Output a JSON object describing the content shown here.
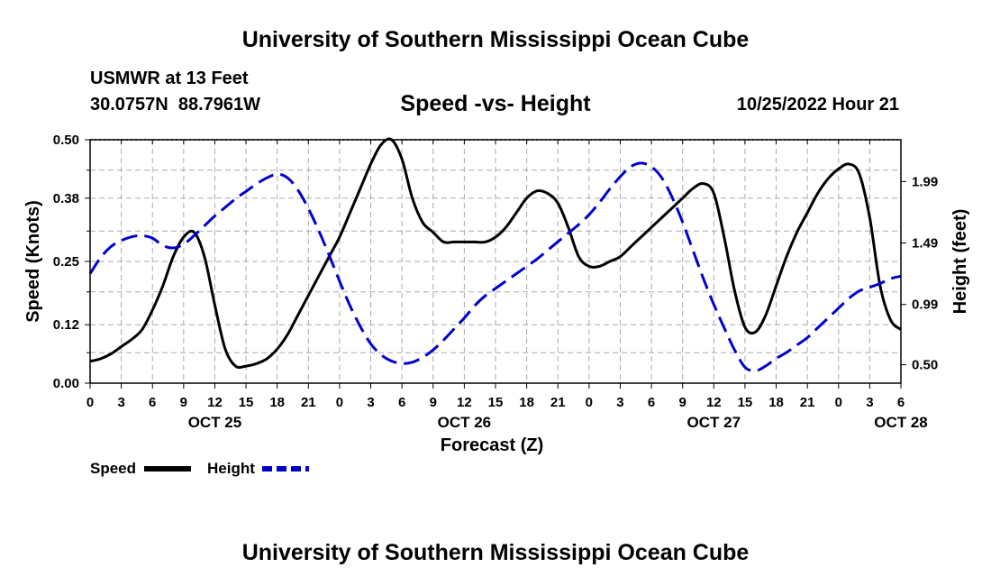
{
  "header": {
    "title": "University of Southern Mississippi Ocean Cube",
    "station": "USMWR at 13 Feet",
    "coords": "30.0757N  88.7961W",
    "subtitle": "Speed -vs- Height",
    "datetime": "10/25/2022 Hour 21"
  },
  "footer": {
    "title": "University of Southern Mississippi Ocean Cube"
  },
  "colors": {
    "speed": "#000000",
    "height": "#0000cc",
    "grid": "#aaaaaa"
  },
  "chart_data": {
    "type": "line",
    "title": "Speed -vs- Height",
    "xlabel": "Forecast (Z)",
    "ylabel": "Speed (Knots)",
    "y2label": "Height (feet)",
    "x_ticks": [
      "0",
      "3",
      "6",
      "9",
      "12",
      "15",
      "18",
      "21",
      "0",
      "3",
      "6",
      "9",
      "12",
      "15",
      "18",
      "21",
      "0",
      "3",
      "6",
      "9",
      "12",
      "15",
      "18",
      "21",
      "0",
      "3",
      "6"
    ],
    "day_labels": [
      {
        "label": "OCT 25",
        "hour": 12
      },
      {
        "label": "OCT 26",
        "hour": 36
      },
      {
        "label": "OCT 27",
        "hour": 60
      },
      {
        "label": "OCT 28",
        "hour": 78
      }
    ],
    "xlim": [
      0,
      78
    ],
    "ylim": [
      0,
      0.5
    ],
    "y_ticks": [
      "0.00",
      "0.12",
      "0.25",
      "0.38",
      "0.50"
    ],
    "y2lim": [
      0.35,
      2.33
    ],
    "y2_ticks": [
      "0.50",
      "0.99",
      "1.49",
      "1.99"
    ],
    "grid": true,
    "legend_position": "bottom-left",
    "series": [
      {
        "name": "Speed",
        "axis": "left",
        "style": "solid",
        "x": [
          0,
          1,
          2,
          3,
          4,
          5,
          6,
          7,
          8,
          9,
          10,
          11,
          12,
          13,
          14,
          15,
          16,
          17,
          18,
          19,
          20,
          21,
          22,
          23,
          24,
          25,
          26,
          27,
          28,
          29,
          30,
          31,
          32,
          33,
          34,
          35,
          36,
          37,
          38,
          39,
          40,
          41,
          42,
          43,
          44,
          45,
          46,
          47,
          48,
          49,
          50,
          51,
          52,
          53,
          54,
          55,
          56,
          57,
          58,
          59,
          60,
          61,
          62,
          63,
          64,
          65,
          66,
          67,
          68,
          69,
          70,
          71,
          72,
          73,
          74,
          75,
          76,
          77,
          78
        ],
        "values": [
          0.045,
          0.05,
          0.06,
          0.075,
          0.09,
          0.11,
          0.15,
          0.2,
          0.26,
          0.3,
          0.31,
          0.26,
          0.16,
          0.07,
          0.035,
          0.035,
          0.04,
          0.05,
          0.07,
          0.1,
          0.14,
          0.18,
          0.22,
          0.26,
          0.3,
          0.35,
          0.4,
          0.45,
          0.49,
          0.5,
          0.46,
          0.38,
          0.33,
          0.31,
          0.29,
          0.29,
          0.29,
          0.29,
          0.29,
          0.3,
          0.32,
          0.35,
          0.38,
          0.395,
          0.39,
          0.37,
          0.32,
          0.26,
          0.24,
          0.24,
          0.25,
          0.26,
          0.28,
          0.3,
          0.32,
          0.34,
          0.36,
          0.38,
          0.4,
          0.41,
          0.39,
          0.3,
          0.19,
          0.115,
          0.105,
          0.14,
          0.2,
          0.26,
          0.31,
          0.35,
          0.39,
          0.42,
          0.44,
          0.45,
          0.43,
          0.34,
          0.2,
          0.13,
          0.11
        ]
      },
      {
        "name": "Height",
        "axis": "right",
        "style": "dashed",
        "x": [
          0,
          1,
          2,
          3,
          4,
          5,
          6,
          7,
          8,
          9,
          10,
          11,
          12,
          13,
          14,
          15,
          16,
          17,
          18,
          19,
          20,
          21,
          22,
          23,
          24,
          25,
          26,
          27,
          28,
          29,
          30,
          31,
          32,
          33,
          34,
          35,
          36,
          37,
          38,
          39,
          40,
          41,
          42,
          43,
          44,
          45,
          46,
          47,
          48,
          49,
          50,
          51,
          52,
          53,
          54,
          55,
          56,
          57,
          58,
          59,
          60,
          61,
          62,
          63,
          64,
          65,
          66,
          67,
          68,
          69,
          70,
          71,
          72,
          73,
          74,
          75,
          76,
          77,
          78
        ],
        "values": [
          1.24,
          1.37,
          1.46,
          1.51,
          1.54,
          1.55,
          1.53,
          1.47,
          1.45,
          1.48,
          1.55,
          1.63,
          1.71,
          1.78,
          1.85,
          1.91,
          1.97,
          2.02,
          2.05,
          2.02,
          1.92,
          1.77,
          1.59,
          1.39,
          1.18,
          0.98,
          0.81,
          0.67,
          0.58,
          0.53,
          0.51,
          0.52,
          0.56,
          0.62,
          0.7,
          0.79,
          0.88,
          0.98,
          1.06,
          1.12,
          1.18,
          1.24,
          1.3,
          1.36,
          1.43,
          1.5,
          1.57,
          1.64,
          1.72,
          1.82,
          1.93,
          2.03,
          2.11,
          2.14,
          2.11,
          2.02,
          1.86,
          1.66,
          1.43,
          1.2,
          0.99,
          0.8,
          0.62,
          0.48,
          0.45,
          0.49,
          0.55,
          0.6,
          0.66,
          0.72,
          0.8,
          0.88,
          0.96,
          1.04,
          1.1,
          1.13,
          1.16,
          1.2,
          1.22
        ]
      }
    ]
  },
  "legend": {
    "speed_label": "Speed",
    "height_label": "Height"
  }
}
